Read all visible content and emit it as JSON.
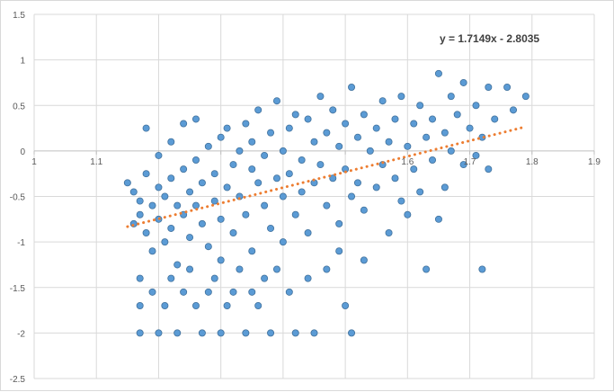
{
  "chart_data": {
    "type": "scatter",
    "title": "",
    "xlabel": "",
    "ylabel": "",
    "xlim": [
      1,
      1.9
    ],
    "ylim": [
      -2.5,
      1.5
    ],
    "x_ticks": [
      1,
      1.1,
      1.2,
      1.3,
      1.4,
      1.5,
      1.6,
      1.7,
      1.8,
      1.9
    ],
    "x_tick_labels": [
      "1",
      "1.1",
      "",
      "",
      "",
      "",
      "1.6",
      "1.7",
      "1.8",
      "1.9"
    ],
    "y_ticks": [
      1.5,
      1,
      0.5,
      0,
      -0.5,
      -1,
      -1.5,
      -2,
      -2.5
    ],
    "y_tick_labels": [
      "1.5",
      "1",
      "0.5",
      "0",
      "-0.5",
      "-1",
      "-1.5",
      "-2",
      "-2.5"
    ],
    "grid": true,
    "legend": "none",
    "marker_color": "#5B9BD5",
    "marker_edge_color": "#41719C",
    "trendline": {
      "type": "linear",
      "slope": 1.7149,
      "intercept": -2.8035,
      "x_range": [
        1.15,
        1.79
      ],
      "color": "#ED7D31",
      "style": "dotted",
      "equation_label": "y = 1.7149x - 2.8035"
    },
    "series": [
      {
        "points": [
          [
            1.15,
            -0.35
          ],
          [
            1.16,
            -0.8
          ],
          [
            1.16,
            -0.45
          ],
          [
            1.17,
            -0.55
          ],
          [
            1.17,
            -0.7
          ],
          [
            1.18,
            -0.25
          ],
          [
            1.18,
            -0.9
          ],
          [
            1.18,
            0.25
          ],
          [
            1.19,
            -0.6
          ],
          [
            1.19,
            -1.1
          ],
          [
            1.2,
            -0.4
          ],
          [
            1.2,
            -0.75
          ],
          [
            1.2,
            -0.05
          ],
          [
            1.21,
            -0.5
          ],
          [
            1.21,
            -1.0
          ],
          [
            1.22,
            -0.3
          ],
          [
            1.22,
            -0.85
          ],
          [
            1.22,
            0.1
          ],
          [
            1.23,
            -0.6
          ],
          [
            1.23,
            -1.25
          ],
          [
            1.24,
            -0.2
          ],
          [
            1.24,
            -0.7
          ],
          [
            1.24,
            0.3
          ],
          [
            1.25,
            -0.45
          ],
          [
            1.25,
            -0.95
          ],
          [
            1.26,
            -0.1
          ],
          [
            1.26,
            -0.6
          ],
          [
            1.26,
            0.35
          ],
          [
            1.27,
            -0.35
          ],
          [
            1.27,
            -0.8
          ],
          [
            1.28,
            0.05
          ],
          [
            1.28,
            -1.05
          ],
          [
            1.29,
            -0.25
          ],
          [
            1.29,
            -0.55
          ],
          [
            1.3,
            0.15
          ],
          [
            1.3,
            -0.75
          ],
          [
            1.3,
            -1.2
          ],
          [
            1.31,
            -0.4
          ],
          [
            1.31,
            0.25
          ],
          [
            1.32,
            -0.15
          ],
          [
            1.32,
            -0.9
          ],
          [
            1.33,
            0.0
          ],
          [
            1.33,
            -0.5
          ],
          [
            1.34,
            0.3
          ],
          [
            1.34,
            -0.7
          ],
          [
            1.35,
            -0.2
          ],
          [
            1.35,
            0.1
          ],
          [
            1.35,
            -1.1
          ],
          [
            1.36,
            -0.35
          ],
          [
            1.36,
            0.45
          ],
          [
            1.37,
            -0.05
          ],
          [
            1.37,
            -0.6
          ],
          [
            1.38,
            0.2
          ],
          [
            1.38,
            -0.85
          ],
          [
            1.39,
            -0.3
          ],
          [
            1.39,
            0.55
          ],
          [
            1.4,
            0.0
          ],
          [
            1.4,
            -0.5
          ],
          [
            1.4,
            -1.0
          ],
          [
            1.41,
            0.25
          ],
          [
            1.41,
            -0.25
          ],
          [
            1.42,
            -0.7
          ],
          [
            1.42,
            0.4
          ],
          [
            1.43,
            -0.1
          ],
          [
            1.43,
            -0.45
          ],
          [
            1.44,
            0.35
          ],
          [
            1.44,
            -0.9
          ],
          [
            1.45,
            0.1
          ],
          [
            1.45,
            -0.35
          ],
          [
            1.46,
            0.6
          ],
          [
            1.46,
            -0.15
          ],
          [
            1.47,
            -0.6
          ],
          [
            1.47,
            0.2
          ],
          [
            1.48,
            0.45
          ],
          [
            1.48,
            -0.3
          ],
          [
            1.49,
            0.05
          ],
          [
            1.49,
            -0.8
          ],
          [
            1.5,
            0.3
          ],
          [
            1.5,
            -0.2
          ],
          [
            1.51,
            0.7
          ],
          [
            1.51,
            -0.5
          ],
          [
            1.52,
            0.15
          ],
          [
            1.52,
            -0.35
          ],
          [
            1.53,
            0.4
          ],
          [
            1.53,
            -0.65
          ],
          [
            1.54,
            0.0
          ],
          [
            1.55,
            0.25
          ],
          [
            1.55,
            -0.4
          ],
          [
            1.56,
            0.55
          ],
          [
            1.56,
            -0.15
          ],
          [
            1.57,
            -0.9
          ],
          [
            1.57,
            0.1
          ],
          [
            1.58,
            0.35
          ],
          [
            1.58,
            -0.3
          ],
          [
            1.59,
            0.6
          ],
          [
            1.59,
            -0.55
          ],
          [
            1.6,
            0.05
          ],
          [
            1.6,
            -0.7
          ],
          [
            1.61,
            0.3
          ],
          [
            1.61,
            -0.2
          ],
          [
            1.62,
            0.5
          ],
          [
            1.62,
            -0.45
          ],
          [
            1.63,
            0.15
          ],
          [
            1.63,
            -1.3
          ],
          [
            1.64,
            0.35
          ],
          [
            1.64,
            -0.1
          ],
          [
            1.65,
            0.85
          ],
          [
            1.65,
            -0.75
          ],
          [
            1.66,
            0.2
          ],
          [
            1.66,
            -0.4
          ],
          [
            1.67,
            0.6
          ],
          [
            1.67,
            0.0
          ],
          [
            1.68,
            0.4
          ],
          [
            1.69,
            -0.15
          ],
          [
            1.69,
            0.75
          ],
          [
            1.7,
            0.25
          ],
          [
            1.71,
            0.5
          ],
          [
            1.71,
            -0.05
          ],
          [
            1.72,
            -1.3
          ],
          [
            1.72,
            0.15
          ],
          [
            1.73,
            0.7
          ],
          [
            1.73,
            -0.2
          ],
          [
            1.74,
            0.35
          ],
          [
            1.76,
            0.7
          ],
          [
            1.77,
            0.45
          ],
          [
            1.79,
            0.6
          ],
          [
            1.17,
            -1.4
          ],
          [
            1.17,
            -1.7
          ],
          [
            1.17,
            -2.0
          ],
          [
            1.19,
            -1.55
          ],
          [
            1.2,
            -2.0
          ],
          [
            1.21,
            -1.7
          ],
          [
            1.22,
            -1.4
          ],
          [
            1.23,
            -2.0
          ],
          [
            1.24,
            -1.55
          ],
          [
            1.25,
            -1.3
          ],
          [
            1.26,
            -1.7
          ],
          [
            1.27,
            -2.0
          ],
          [
            1.28,
            -1.55
          ],
          [
            1.29,
            -1.4
          ],
          [
            1.3,
            -2.0
          ],
          [
            1.31,
            -1.7
          ],
          [
            1.32,
            -1.55
          ],
          [
            1.33,
            -1.3
          ],
          [
            1.34,
            -2.0
          ],
          [
            1.35,
            -1.55
          ],
          [
            1.36,
            -1.7
          ],
          [
            1.37,
            -1.4
          ],
          [
            1.38,
            -2.0
          ],
          [
            1.39,
            -1.3
          ],
          [
            1.41,
            -1.55
          ],
          [
            1.42,
            -2.0
          ],
          [
            1.44,
            -1.4
          ],
          [
            1.45,
            -2.0
          ],
          [
            1.47,
            -1.3
          ],
          [
            1.49,
            -1.1
          ],
          [
            1.5,
            -1.7
          ],
          [
            1.51,
            -2.0
          ],
          [
            1.53,
            -1.2
          ]
        ]
      }
    ],
    "annotations": [
      "y = 1.7149x - 2.8035"
    ]
  }
}
